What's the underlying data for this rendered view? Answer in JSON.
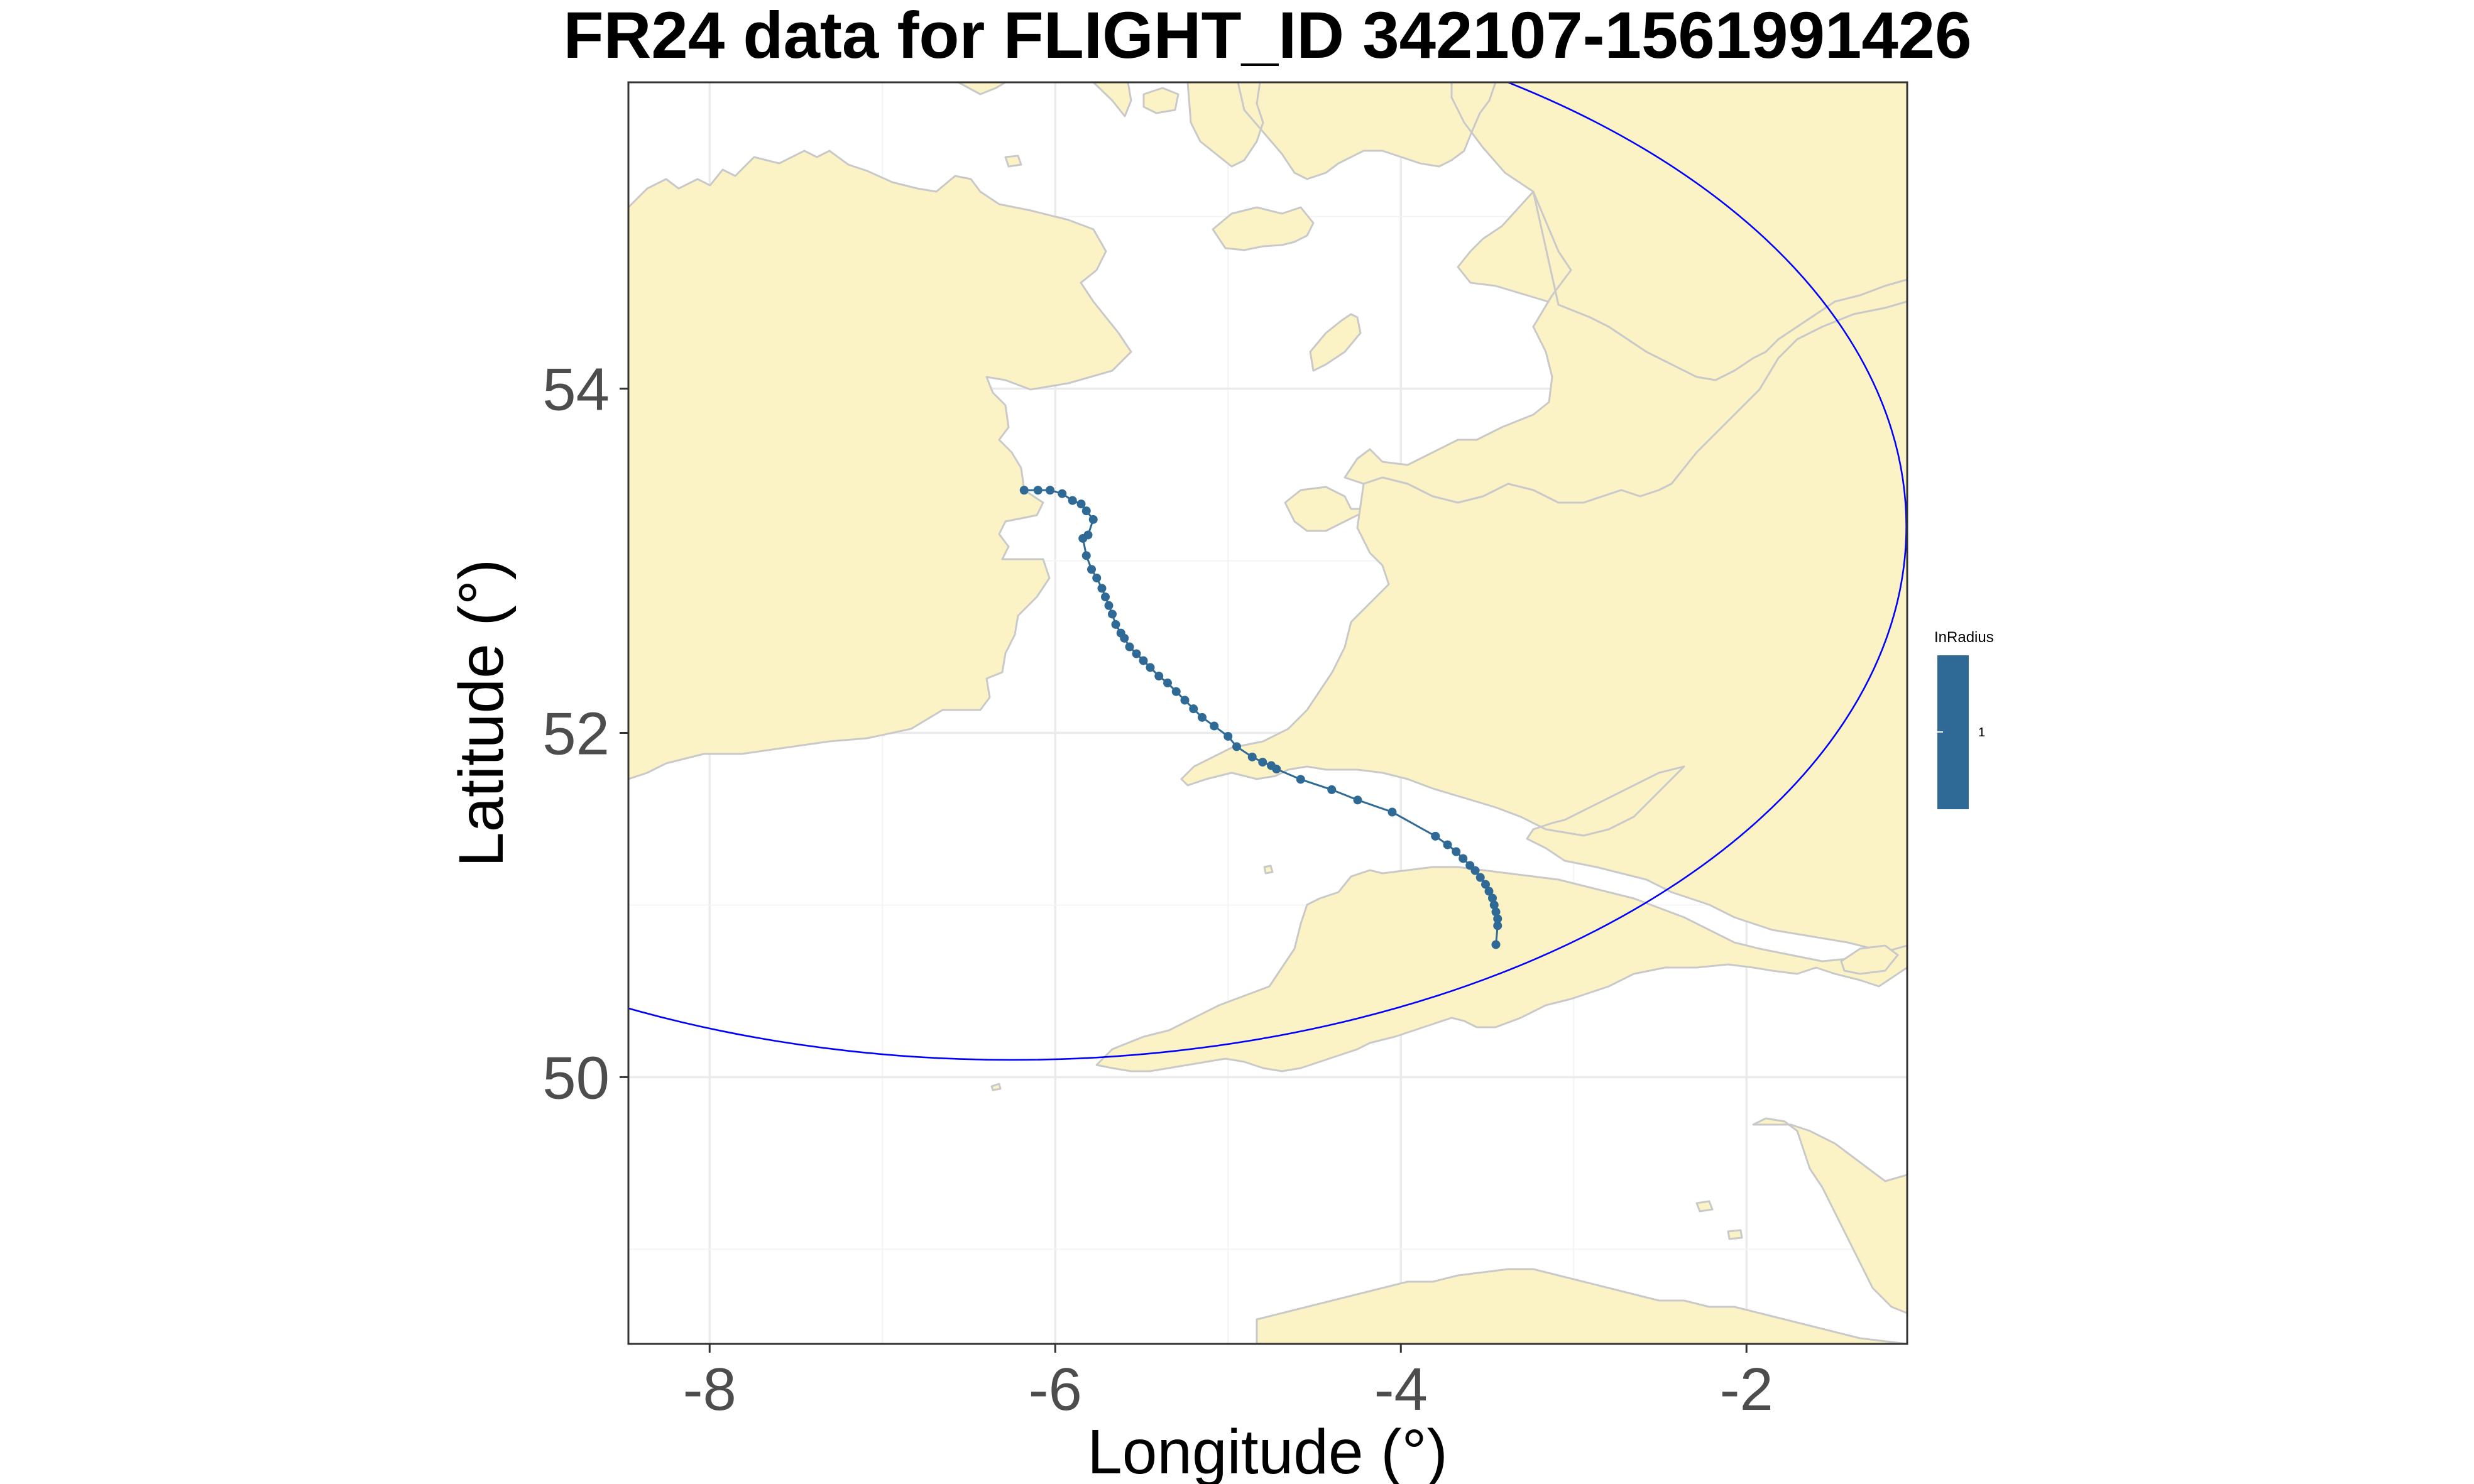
{
  "title": "FR24 data for FLIGHT_ID 342107-1561991426",
  "colors": {
    "land": "#fbf3c5",
    "coast": "#c9c9c9",
    "track": "#2f6a97",
    "radius_circle": "#0000ff",
    "grid": "#ebebeb"
  },
  "chart_data": {
    "type": "scatter",
    "title": "FR24 data for FLIGHT_ID 342107-1561991426",
    "xlabel": "Longitude (°)",
    "ylabel": "Latitude (°)",
    "xlim": [
      -8.47,
      -1.07
    ],
    "ylim": [
      48.45,
      55.78
    ],
    "x_ticks": [
      -8,
      -6,
      -4,
      -2
    ],
    "x_tick_labels": [
      "-8",
      "-6",
      "-4",
      "-2"
    ],
    "y_ticks": [
      50,
      52,
      54
    ],
    "y_tick_labels": [
      "50",
      "52",
      "54"
    ],
    "grid": true,
    "legend": {
      "title": "InRadius",
      "labels": [
        "1"
      ],
      "placement": "right"
    },
    "series": [
      {
        "x": [
          -6.18,
          -6.1,
          -6.03,
          -5.96,
          -5.9,
          -5.85,
          -5.82,
          -5.78,
          -5.81,
          -5.84,
          -5.82,
          -5.79,
          -5.76,
          -5.73,
          -5.71,
          -5.69,
          -5.67,
          -5.65,
          -5.62,
          -5.6,
          -5.57,
          -5.53,
          -5.49,
          -5.45,
          -5.4,
          -5.35,
          -5.3,
          -5.25,
          -5.2,
          -5.15,
          -5.08,
          -5.0,
          -4.95,
          -4.86,
          -4.8,
          -4.75,
          -4.72,
          -4.58,
          -4.4,
          -4.25,
          -4.05,
          -3.8,
          -3.73,
          -3.68,
          -3.64,
          -3.6,
          -3.57,
          -3.54,
          -3.51,
          -3.49,
          -3.47,
          -3.46,
          -3.45,
          -3.44,
          -3.44,
          -3.45
        ],
        "y": [
          53.41,
          53.41,
          53.41,
          53.39,
          53.35,
          53.33,
          53.29,
          53.24,
          53.15,
          53.13,
          53.03,
          52.95,
          52.9,
          52.84,
          52.79,
          52.74,
          52.69,
          52.63,
          52.58,
          52.55,
          52.5,
          52.46,
          52.42,
          52.38,
          52.33,
          52.29,
          52.24,
          52.19,
          52.14,
          52.09,
          52.04,
          51.98,
          51.92,
          51.86,
          51.83,
          51.81,
          51.79,
          51.73,
          51.67,
          51.61,
          51.54,
          51.4,
          51.35,
          51.31,
          51.27,
          51.23,
          51.2,
          51.16,
          51.12,
          51.08,
          51.04,
          51.0,
          50.96,
          50.92,
          50.88,
          50.77
        ]
      }
    ],
    "radius_circle": {
      "center": [
        -6.25,
        53.2
      ],
      "radius_deg": 3.1
    }
  }
}
